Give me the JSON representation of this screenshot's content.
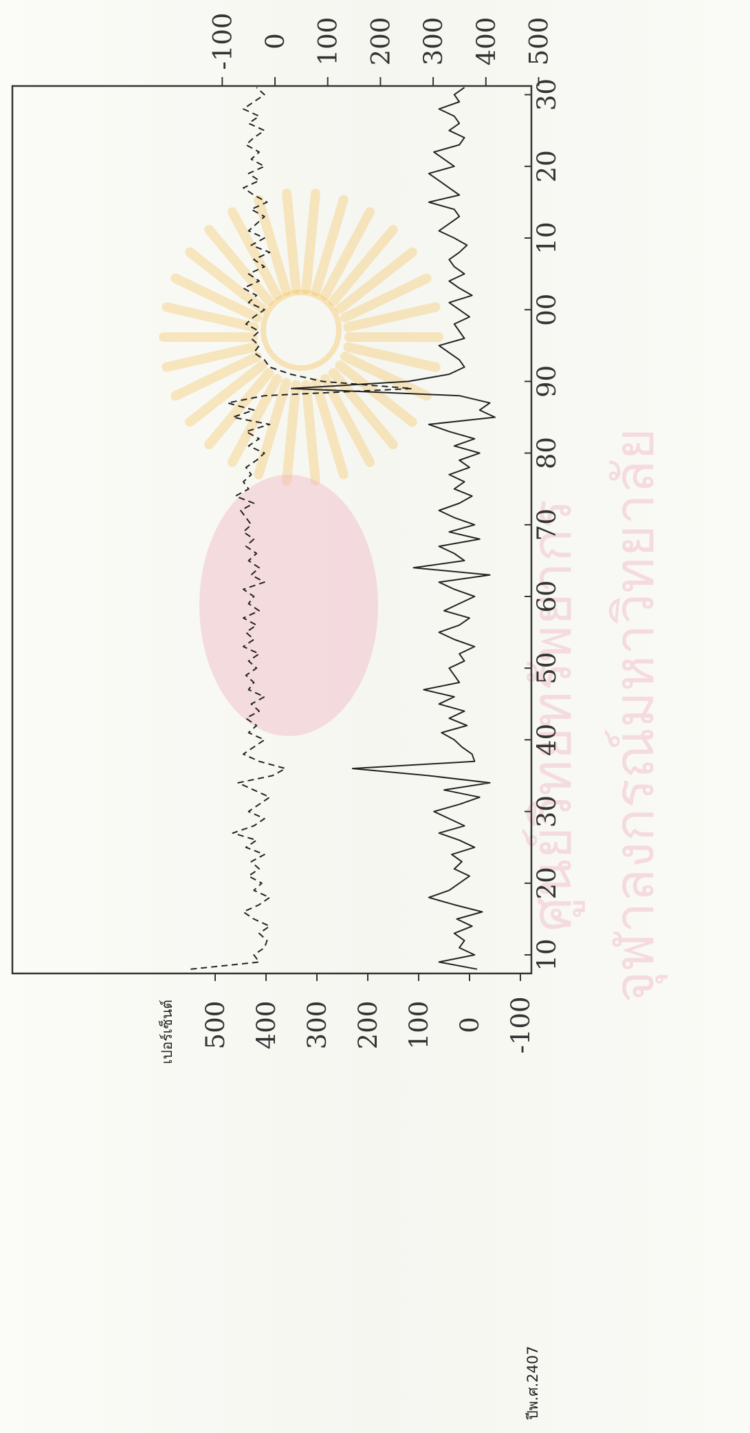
{
  "chart_data": {
    "type": "line",
    "x_ticks": [
      "10",
      "20",
      "30",
      "40",
      "50",
      "60",
      "70",
      "80",
      "90",
      "00",
      "10",
      "20",
      "30"
    ],
    "left_axis": {
      "unit_label": "เปอร์เซ็นต์",
      "ticks": [
        "-100",
        "0",
        "100",
        "200",
        "300",
        "400",
        "500"
      ],
      "ylim": [
        -100,
        500
      ]
    },
    "right_axis": {
      "ticks": [
        "-100",
        "0",
        "100",
        "200",
        "300",
        "400",
        "500"
      ],
      "ylim": [
        -100,
        500
      ]
    },
    "footnote": "ปีพ.ศ.2407",
    "series": [
      {
        "style": "solid",
        "axis": "left",
        "points": [
          [
            8,
            -15
          ],
          [
            9,
            60
          ],
          [
            10,
            -10
          ],
          [
            11,
            20
          ],
          [
            12,
            10
          ],
          [
            13,
            30
          ],
          [
            14,
            -5
          ],
          [
            15,
            25
          ],
          [
            16,
            -25
          ],
          [
            17,
            30
          ],
          [
            18,
            80
          ],
          [
            19,
            40
          ],
          [
            20,
            20
          ],
          [
            21,
            0
          ],
          [
            22,
            30
          ],
          [
            23,
            15
          ],
          [
            24,
            35
          ],
          [
            25,
            -10
          ],
          [
            26,
            20
          ],
          [
            27,
            60
          ],
          [
            28,
            10
          ],
          [
            29,
            40
          ],
          [
            30,
            70
          ],
          [
            31,
            20
          ],
          [
            32,
            -20
          ],
          [
            33,
            50
          ],
          [
            34,
            -40
          ],
          [
            35,
            80
          ],
          [
            36,
            230
          ],
          [
            37,
            -10
          ],
          [
            38,
            -5
          ],
          [
            39,
            15
          ],
          [
            40,
            30
          ],
          [
            41,
            55
          ],
          [
            42,
            5
          ],
          [
            43,
            40
          ],
          [
            44,
            10
          ],
          [
            45,
            60
          ],
          [
            46,
            30
          ],
          [
            47,
            90
          ],
          [
            48,
            20
          ],
          [
            49,
            30
          ],
          [
            50,
            40
          ],
          [
            51,
            10
          ],
          [
            52,
            20
          ],
          [
            53,
            -10
          ],
          [
            54,
            30
          ],
          [
            55,
            60
          ],
          [
            56,
            20
          ],
          [
            57,
            0
          ],
          [
            58,
            50
          ],
          [
            59,
            20
          ],
          [
            60,
            -10
          ],
          [
            61,
            30
          ],
          [
            62,
            60
          ],
          [
            63,
            -40
          ],
          [
            64,
            110
          ],
          [
            65,
            10
          ],
          [
            66,
            30
          ],
          [
            67,
            60
          ],
          [
            68,
            -20
          ],
          [
            69,
            40
          ],
          [
            70,
            -10
          ],
          [
            71,
            30
          ],
          [
            72,
            60
          ],
          [
            73,
            20
          ],
          [
            74,
            -5
          ],
          [
            75,
            30
          ],
          [
            76,
            10
          ],
          [
            77,
            40
          ],
          [
            78,
            0
          ],
          [
            79,
            20
          ],
          [
            80,
            -20
          ],
          [
            81,
            30
          ],
          [
            82,
            -10
          ],
          [
            83,
            40
          ],
          [
            84,
            80
          ],
          [
            85,
            -50
          ],
          [
            86,
            -20
          ],
          [
            87,
            -40
          ],
          [
            88,
            20
          ],
          [
            89,
            350
          ],
          [
            90,
            120
          ],
          [
            91,
            40
          ],
          [
            92,
            10
          ],
          [
            93,
            20
          ],
          [
            94,
            40
          ],
          [
            95,
            60
          ],
          [
            96,
            10
          ],
          [
            97,
            20
          ],
          [
            98,
            30
          ],
          [
            99,
            0
          ],
          [
            100,
            20
          ],
          [
            101,
            40
          ],
          [
            102,
            -5
          ],
          [
            103,
            20
          ],
          [
            104,
            40
          ],
          [
            105,
            10
          ],
          [
            106,
            30
          ],
          [
            107,
            40
          ],
          [
            108,
            20
          ],
          [
            109,
            5
          ],
          [
            110,
            30
          ],
          [
            111,
            60
          ],
          [
            112,
            40
          ],
          [
            113,
            20
          ],
          [
            114,
            30
          ],
          [
            115,
            80
          ],
          [
            116,
            20
          ],
          [
            117,
            40
          ],
          [
            118,
            60
          ],
          [
            119,
            80
          ],
          [
            120,
            30
          ],
          [
            121,
            50
          ],
          [
            122,
            70
          ],
          [
            123,
            20
          ],
          [
            124,
            10
          ],
          [
            125,
            40
          ],
          [
            126,
            20
          ],
          [
            127,
            30
          ],
          [
            128,
            60
          ],
          [
            129,
            20
          ],
          [
            130,
            30
          ],
          [
            131,
            10
          ]
        ]
      },
      {
        "style": "dashed",
        "axis": "right",
        "points": [
          [
            8,
            -160
          ],
          [
            9,
            -30
          ],
          [
            10,
            -40
          ],
          [
            11,
            -20
          ],
          [
            12,
            -15
          ],
          [
            13,
            -30
          ],
          [
            14,
            -10
          ],
          [
            15,
            -40
          ],
          [
            16,
            -60
          ],
          [
            17,
            -30
          ],
          [
            18,
            -10
          ],
          [
            19,
            -40
          ],
          [
            20,
            -25
          ],
          [
            21,
            -50
          ],
          [
            22,
            -30
          ],
          [
            23,
            -45
          ],
          [
            24,
            -20
          ],
          [
            25,
            -55
          ],
          [
            26,
            -35
          ],
          [
            27,
            -80
          ],
          [
            28,
            -40
          ],
          [
            29,
            -20
          ],
          [
            30,
            -50
          ],
          [
            31,
            -30
          ],
          [
            32,
            -10
          ],
          [
            33,
            -40
          ],
          [
            34,
            -70
          ],
          [
            35,
            -5
          ],
          [
            36,
            20
          ],
          [
            37,
            -30
          ],
          [
            38,
            -60
          ],
          [
            39,
            -40
          ],
          [
            40,
            -20
          ],
          [
            41,
            -50
          ],
          [
            42,
            -35
          ],
          [
            43,
            -55
          ],
          [
            44,
            -30
          ],
          [
            45,
            -45
          ],
          [
            46,
            -20
          ],
          [
            47,
            -50
          ],
          [
            48,
            -40
          ],
          [
            49,
            -55
          ],
          [
            50,
            -35
          ],
          [
            51,
            -50
          ],
          [
            52,
            -30
          ],
          [
            53,
            -60
          ],
          [
            54,
            -40
          ],
          [
            55,
            -55
          ],
          [
            56,
            -35
          ],
          [
            57,
            -60
          ],
          [
            58,
            -30
          ],
          [
            59,
            -50
          ],
          [
            60,
            -40
          ],
          [
            61,
            -60
          ],
          [
            62,
            -20
          ],
          [
            63,
            -45
          ],
          [
            64,
            -30
          ],
          [
            65,
            -50
          ],
          [
            66,
            -35
          ],
          [
            67,
            -55
          ],
          [
            68,
            -40
          ],
          [
            69,
            -60
          ],
          [
            70,
            -45
          ],
          [
            71,
            -55
          ],
          [
            72,
            -65
          ],
          [
            73,
            -40
          ],
          [
            74,
            -75
          ],
          [
            75,
            -50
          ],
          [
            76,
            -60
          ],
          [
            77,
            -45
          ],
          [
            78,
            -55
          ],
          [
            79,
            -35
          ],
          [
            80,
            -20
          ],
          [
            81,
            -50
          ],
          [
            82,
            -30
          ],
          [
            83,
            -55
          ],
          [
            84,
            -10
          ],
          [
            85,
            -80
          ],
          [
            86,
            -40
          ],
          [
            87,
            -90
          ],
          [
            88,
            -20
          ],
          [
            89,
            260
          ],
          [
            90,
            90
          ],
          [
            91,
            30
          ],
          [
            92,
            -10
          ],
          [
            93,
            -20
          ],
          [
            94,
            -40
          ],
          [
            95,
            -30
          ],
          [
            96,
            -45
          ],
          [
            97,
            -30
          ],
          [
            98,
            -55
          ],
          [
            99,
            -40
          ],
          [
            100,
            -20
          ],
          [
            101,
            -50
          ],
          [
            102,
            -35
          ],
          [
            103,
            -60
          ],
          [
            104,
            -30
          ],
          [
            105,
            -50
          ],
          [
            106,
            -20
          ],
          [
            107,
            -40
          ],
          [
            108,
            -10
          ],
          [
            109,
            -45
          ],
          [
            110,
            -20
          ],
          [
            111,
            -50
          ],
          [
            112,
            -35
          ],
          [
            113,
            -20
          ],
          [
            114,
            -45
          ],
          [
            115,
            -15
          ],
          [
            116,
            -40
          ],
          [
            117,
            -60
          ],
          [
            118,
            -30
          ],
          [
            119,
            -50
          ],
          [
            120,
            -20
          ],
          [
            121,
            -45
          ],
          [
            122,
            -30
          ],
          [
            123,
            -55
          ],
          [
            124,
            -40
          ],
          [
            125,
            -20
          ],
          [
            126,
            -50
          ],
          [
            127,
            -30
          ],
          [
            128,
            -60
          ],
          [
            129,
            -40
          ],
          [
            130,
            -20
          ],
          [
            131,
            -35
          ]
        ]
      }
    ],
    "grid": false
  },
  "watermark": {
    "line1": "ศูนย์วิทยทรัพยากร",
    "line2": "จุฬาลงกรณ์มหาวิทยาลัย",
    "emblem": "chulalongkorn-university-emblem"
  },
  "colors": {
    "line": "#222222",
    "frame": "#333333",
    "watermark_gold": "#f5c25a",
    "watermark_pink": "#f0b7c6"
  }
}
